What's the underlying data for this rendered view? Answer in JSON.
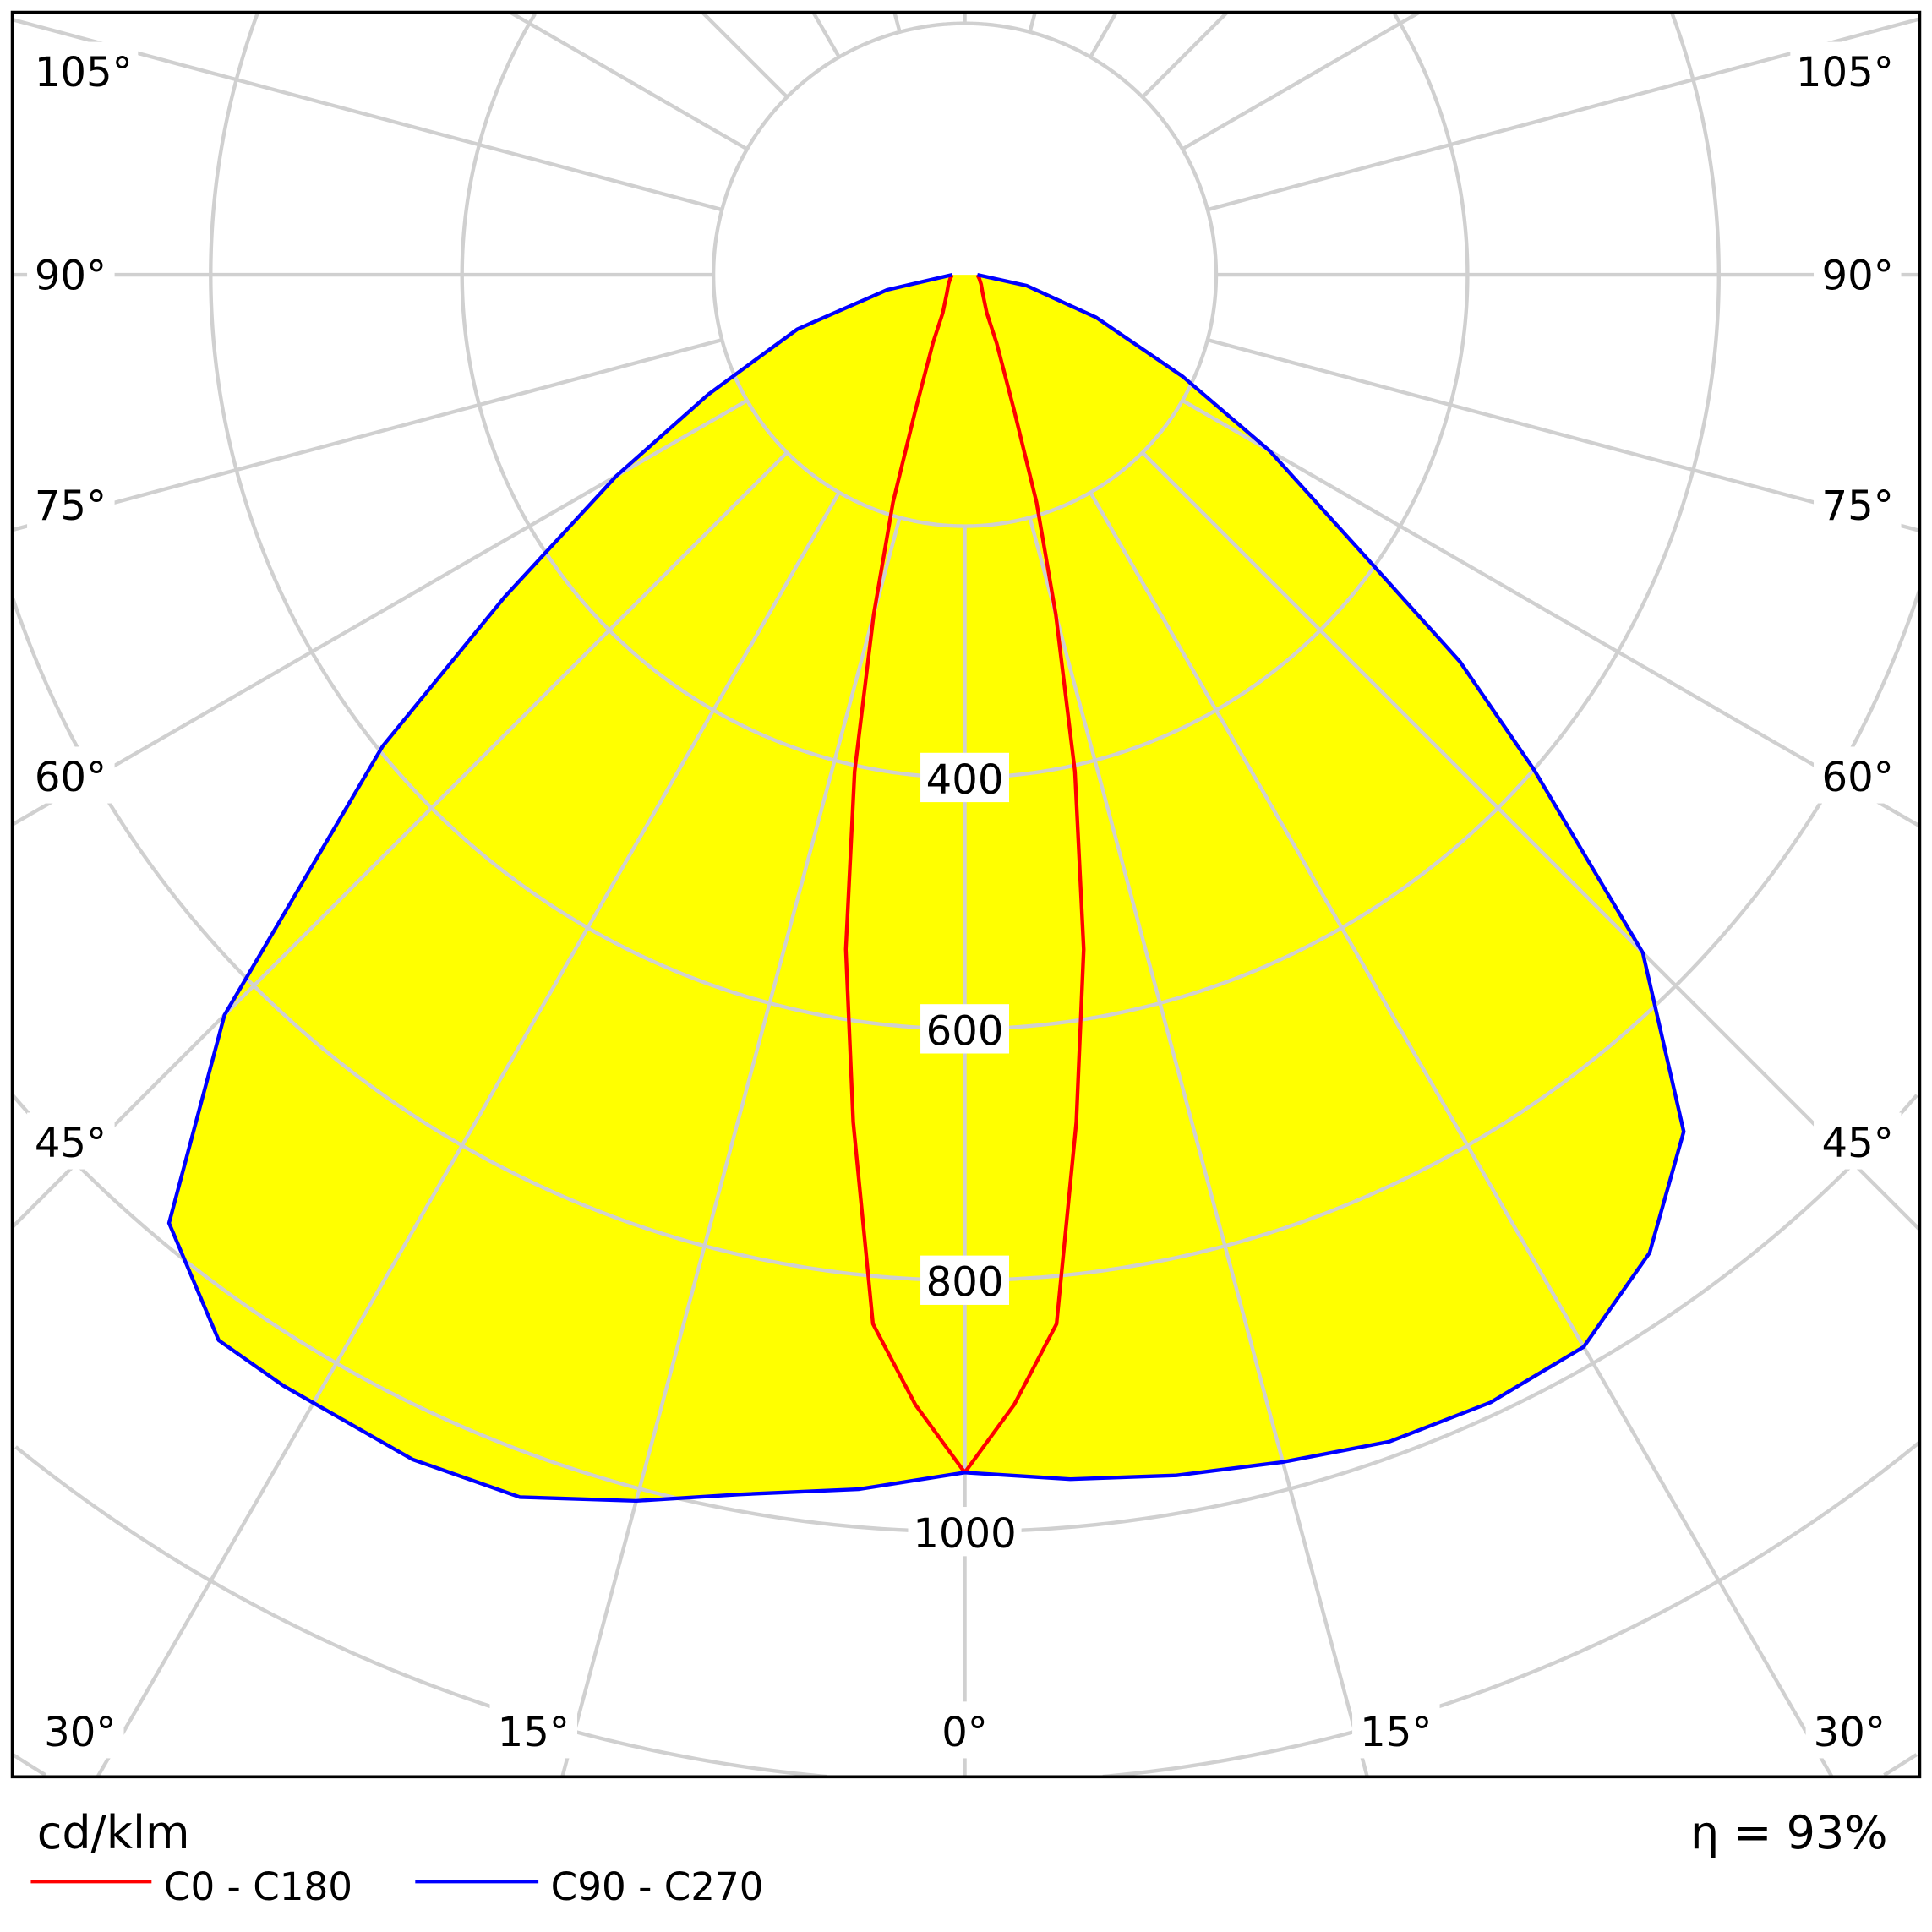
{
  "chart_data": {
    "type": "polar",
    "unit_label": "cd/klm",
    "efficiency_label": "η = 93%",
    "radial_ticks": [
      200,
      400,
      600,
      800,
      1000,
      1200,
      1400,
      1600
    ],
    "radial_tick_labels": [
      "400",
      "600",
      "800",
      "1000"
    ],
    "radial_tick_label_values": [
      400,
      600,
      800,
      1000
    ],
    "angle_labels_left": [
      "105°",
      "90°",
      "75°",
      "60°",
      "45°",
      "30°",
      "15°"
    ],
    "angle_labels_right": [
      "105°",
      "90°",
      "75°",
      "60°",
      "45°",
      "30°",
      "15°"
    ],
    "angle_label_bottom_center": "0°",
    "grid": true,
    "legend_position": "bottom-left",
    "series": [
      {
        "name": "C0 - C180",
        "color": "#ff0000",
        "points": [
          [
            -90,
            10
          ],
          [
            -75,
            12
          ],
          [
            -60,
            15
          ],
          [
            -45,
            20
          ],
          [
            -30,
            35
          ],
          [
            -25,
            60
          ],
          [
            -20,
            115
          ],
          [
            -17.5,
            190
          ],
          [
            -15,
            280
          ],
          [
            -12.5,
            405
          ],
          [
            -10,
            545
          ],
          [
            -7.5,
            680
          ],
          [
            -5,
            838
          ],
          [
            -2.5,
            900
          ],
          [
            0,
            953
          ],
          [
            2.5,
            900
          ],
          [
            5,
            838
          ],
          [
            7.5,
            680
          ],
          [
            10,
            545
          ],
          [
            12.5,
            405
          ],
          [
            15,
            280
          ],
          [
            17.5,
            190
          ],
          [
            20,
            115
          ],
          [
            25,
            60
          ],
          [
            30,
            35
          ],
          [
            45,
            20
          ],
          [
            60,
            15
          ],
          [
            75,
            12
          ],
          [
            90,
            10
          ]
        ]
      },
      {
        "name": "C90 - C270",
        "color": "#0000ff",
        "fill": "#ffff00",
        "points": [
          [
            -90,
            10
          ],
          [
            -79,
            63
          ],
          [
            -72,
            140
          ],
          [
            -65,
            225
          ],
          [
            -60,
            320
          ],
          [
            -55,
            447
          ],
          [
            -51,
            596
          ],
          [
            -45,
            833
          ],
          [
            -40,
            985
          ],
          [
            -35,
            1035
          ],
          [
            -31.5,
            1037
          ],
          [
            -25,
            1040
          ],
          [
            -20,
            1035
          ],
          [
            -15,
            1010
          ],
          [
            -10.5,
            987
          ],
          [
            -5,
            970
          ],
          [
            0,
            953
          ],
          [
            5,
            962
          ],
          [
            10,
            970
          ],
          [
            15,
            978
          ],
          [
            20,
            988
          ],
          [
            25,
            990
          ],
          [
            30,
            985
          ],
          [
            35,
            950
          ],
          [
            40,
            890
          ],
          [
            45,
            763
          ],
          [
            49,
            600
          ],
          [
            52,
            500
          ],
          [
            55,
            386
          ],
          [
            60,
            280
          ],
          [
            65,
            191
          ],
          [
            72,
            110
          ],
          [
            80,
            50
          ],
          [
            90,
            10
          ]
        ]
      }
    ]
  }
}
